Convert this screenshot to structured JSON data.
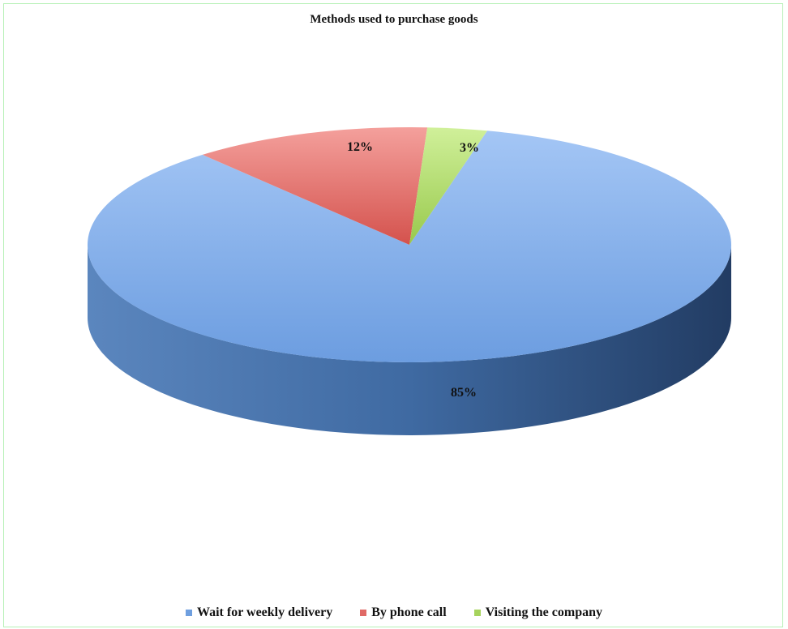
{
  "chart_data": {
    "type": "pie",
    "title": "Methods used to purchase goods",
    "slices": [
      {
        "label": "Wait for weekly delivery",
        "value": 85,
        "display": "85%",
        "color": "#6f9fdf"
      },
      {
        "label": "By phone call",
        "value": 12,
        "display": "12%",
        "color": "#e06a66"
      },
      {
        "label": "Visiting the company",
        "value": 3,
        "display": "3%",
        "color": "#a6d35d"
      }
    ],
    "legend_position": "bottom",
    "style": "3d"
  }
}
